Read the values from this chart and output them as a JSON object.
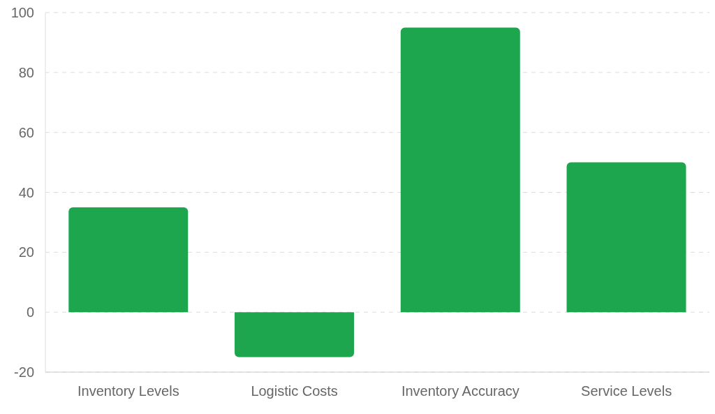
{
  "chart_data": {
    "type": "bar",
    "categories": [
      "Inventory Levels",
      "Logistic Costs",
      "Inventory Accuracy",
      "Service Levels"
    ],
    "values": [
      35,
      -15,
      95,
      50
    ],
    "color": "#1ea64f",
    "ylim": [
      -20,
      100
    ],
    "yticks": [
      -20,
      0,
      20,
      40,
      60,
      80,
      100
    ],
    "grid": "y"
  }
}
